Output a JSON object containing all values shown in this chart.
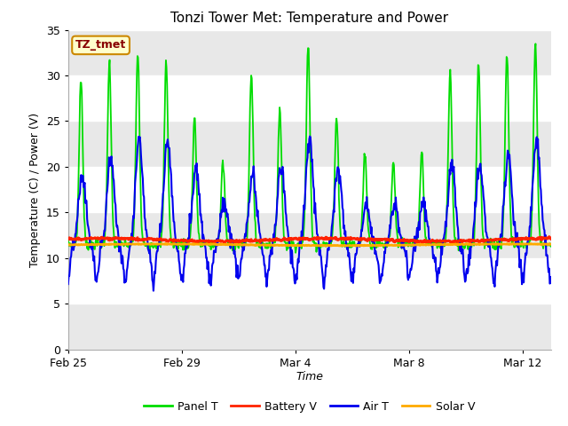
{
  "title": "Tonzi Tower Met: Temperature and Power",
  "xlabel": "Time",
  "ylabel": "Temperature (C) / Power (V)",
  "ylim": [
    0,
    35
  ],
  "yticks": [
    0,
    5,
    10,
    15,
    20,
    25,
    30,
    35
  ],
  "xtick_labels": [
    "Feb 25",
    "Feb 29",
    "Mar 4",
    "Mar 8",
    "Mar 12"
  ],
  "annotation_text": "TZ_tmet",
  "annotation_bg": "#ffffcc",
  "annotation_border": "#cc8800",
  "annotation_text_color": "#880000",
  "legend_entries": [
    "Panel T",
    "Battery V",
    "Air T",
    "Solar V"
  ],
  "panel_t_color": "#00dd00",
  "battery_v_color": "#ff2200",
  "air_t_color": "#0000ee",
  "solar_v_color": "#ffaa00",
  "fig_bg": "#ffffff",
  "plot_bg": "#ffffff",
  "band_color_dark": "#e8e8e8",
  "title_fontsize": 11,
  "axis_label_fontsize": 9,
  "tick_fontsize": 9
}
